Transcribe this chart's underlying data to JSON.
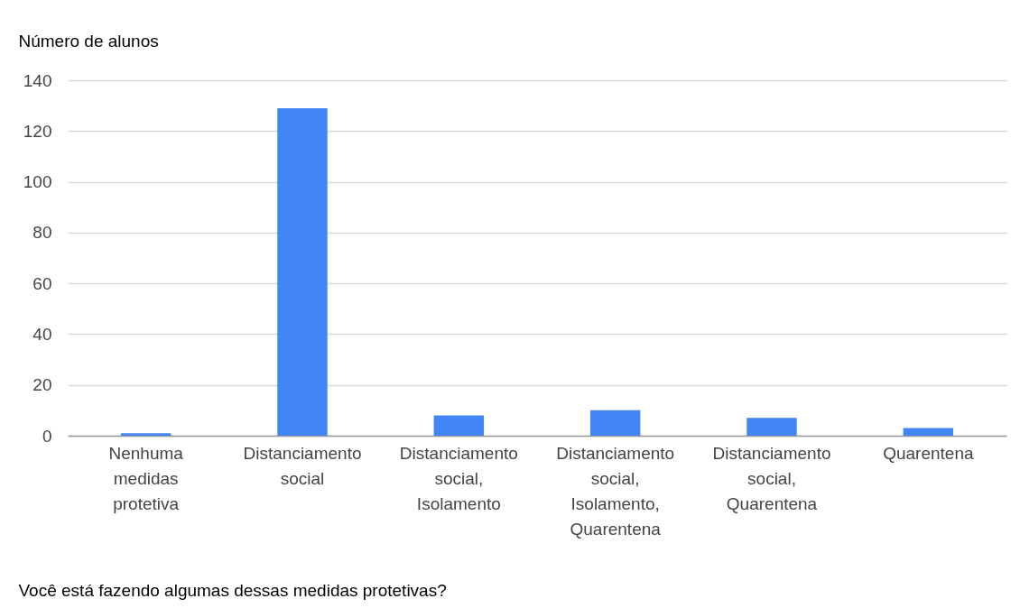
{
  "chart_data": {
    "type": "bar",
    "ylabel": "Número de alunos",
    "xlabel": "Você está fazendo algumas dessas medidas protetivas?",
    "categories": [
      "Nenhuma medidas protetiva",
      "Distanciamento social",
      "Distanciamento social, Isolamento",
      "Distanciamento social, Isolamento, Quarentena",
      "Distanciamento social, Quarentena",
      "Quarentena"
    ],
    "values": [
      1,
      129,
      8,
      10,
      7,
      3
    ],
    "color": "#4285f4",
    "ylim": [
      0,
      140
    ],
    "yticks": [
      0,
      20,
      40,
      60,
      80,
      100,
      120,
      140
    ],
    "grid": "y",
    "legend": false
  }
}
